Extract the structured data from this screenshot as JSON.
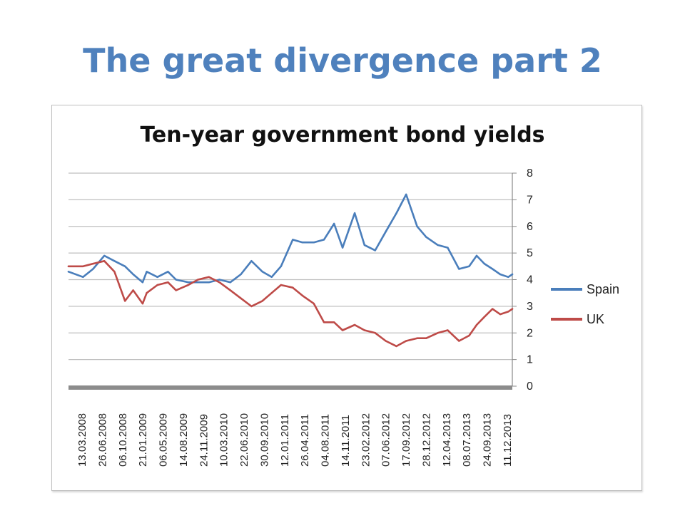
{
  "slide": {
    "title": "The great divergence part 2"
  },
  "colors": {
    "title": "#4f81bd",
    "spain": "#4a7ebb",
    "uk": "#be4b48",
    "grid": "#bfbfbf",
    "axis": "#888888"
  },
  "chart_data": {
    "type": "line",
    "title": "Ten-year government bond yields",
    "xlabel": "",
    "ylabel": "",
    "ylim": [
      0,
      8
    ],
    "yticks": [
      "0",
      "1",
      "2",
      "3",
      "4",
      "5",
      "6",
      "7",
      "8"
    ],
    "y_axis_side": "right",
    "grid": true,
    "legend_position": "right",
    "x_tick_labels": [
      "13.03.2008",
      "26.06.2008",
      "06.10.2008",
      "21.01.2009",
      "06.05.2009",
      "14.08.2009",
      "24.11.2009",
      "10.03.2010",
      "22.06.2010",
      "30.09.2010",
      "12.01.2011",
      "26.04.2011",
      "04.08.2011",
      "14.11.2011",
      "23.02.2012",
      "07.06.2012",
      "17.09.2012",
      "28.12.2012",
      "12.04.2013",
      "08.07.2013",
      "24.09.2013",
      "11.12.2013"
    ],
    "x": [
      "01.01.2008",
      "13.03.2008",
      "01.05.2008",
      "26.06.2008",
      "15.08.2008",
      "06.10.2008",
      "15.11.2008",
      "01.01.2009",
      "21.01.2009",
      "15.03.2009",
      "06.05.2009",
      "15.06.2009",
      "14.08.2009",
      "01.10.2009",
      "24.11.2009",
      "15.01.2010",
      "10.03.2010",
      "01.05.2010",
      "22.06.2010",
      "15.08.2010",
      "30.09.2010",
      "15.11.2010",
      "12.01.2011",
      "01.03.2011",
      "26.04.2011",
      "15.06.2011",
      "04.08.2011",
      "15.09.2011",
      "14.11.2011",
      "01.01.2012",
      "23.02.2012",
      "15.04.2012",
      "07.06.2012",
      "25.07.2012",
      "17.09.2012",
      "01.11.2012",
      "28.12.2012",
      "15.02.2013",
      "12.04.2013",
      "01.06.2013",
      "08.07.2013",
      "15.08.2013",
      "24.09.2013",
      "01.11.2013",
      "11.12.2013",
      "31.12.2013"
    ],
    "series": [
      {
        "name": "Spain",
        "values": [
          4.3,
          4.1,
          4.4,
          4.9,
          4.7,
          4.5,
          4.2,
          3.9,
          4.3,
          4.1,
          4.3,
          4.0,
          3.9,
          3.9,
          3.9,
          4.0,
          3.9,
          4.2,
          4.7,
          4.3,
          4.1,
          4.5,
          5.5,
          5.4,
          5.4,
          5.5,
          6.1,
          5.2,
          6.5,
          5.3,
          5.1,
          5.8,
          6.5,
          7.2,
          6.0,
          5.6,
          5.3,
          5.2,
          4.4,
          4.5,
          4.9,
          4.6,
          4.4,
          4.2,
          4.1,
          4.2
        ]
      },
      {
        "name": "UK",
        "values": [
          4.5,
          4.5,
          4.6,
          4.7,
          4.3,
          3.2,
          3.6,
          3.1,
          3.5,
          3.8,
          3.9,
          3.6,
          3.8,
          4.0,
          4.1,
          3.9,
          3.6,
          3.3,
          3.0,
          3.2,
          3.5,
          3.8,
          3.7,
          3.4,
          3.1,
          2.4,
          2.4,
          2.1,
          2.3,
          2.1,
          2.0,
          1.7,
          1.5,
          1.7,
          1.8,
          1.8,
          2.0,
          2.1,
          1.7,
          1.9,
          2.3,
          2.6,
          2.9,
          2.7,
          2.8,
          2.9
        ]
      }
    ]
  }
}
